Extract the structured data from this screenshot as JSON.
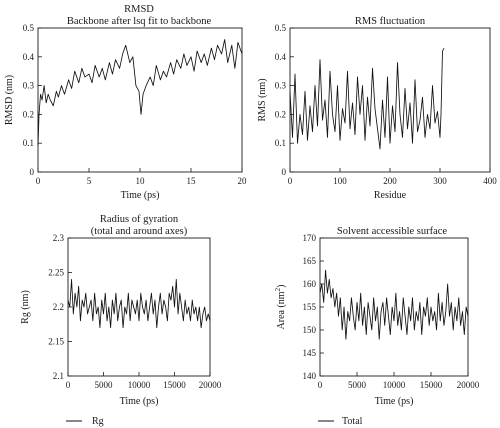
{
  "chart_data": [
    {
      "id": "rmsd",
      "type": "line",
      "title": "RMSD",
      "subtitle": "Backbone after lsq fit to backbone",
      "xlabel": "Time (ps)",
      "ylabel": "RMSD (nm)",
      "xlim": [
        0,
        20
      ],
      "ylim": [
        0,
        0.5
      ],
      "xticks": [
        0,
        5,
        10,
        15,
        20
      ],
      "yticks": [
        0,
        0.1,
        0.2,
        0.3,
        0.4,
        0.5
      ],
      "series": [
        {
          "x": [
            0,
            0.1,
            0.25,
            0.4,
            0.6,
            0.8,
            1.0,
            1.2,
            1.5,
            1.8,
            2.0,
            2.3,
            2.6,
            3.0,
            3.3,
            3.6,
            4.0,
            4.3,
            4.6,
            5.0,
            5.3,
            5.6,
            6.0,
            6.3,
            6.6,
            7.0,
            7.3,
            7.6,
            8.0,
            8.3,
            8.6,
            8.8,
            9.0,
            9.3,
            9.6,
            9.9,
            10.1,
            10.3,
            10.6,
            11.0,
            11.3,
            11.6,
            12.0,
            12.3,
            12.6,
            13.0,
            13.3,
            13.6,
            14.0,
            14.3,
            14.6,
            15.0,
            15.3,
            15.6,
            16.0,
            16.3,
            16.6,
            17.0,
            17.3,
            17.6,
            18.0,
            18.3,
            18.6,
            19.0,
            19.3,
            19.6,
            20.0
          ],
          "y": [
            0.09,
            0.2,
            0.27,
            0.25,
            0.3,
            0.24,
            0.27,
            0.25,
            0.23,
            0.28,
            0.26,
            0.3,
            0.27,
            0.32,
            0.29,
            0.35,
            0.31,
            0.36,
            0.33,
            0.34,
            0.31,
            0.37,
            0.33,
            0.36,
            0.32,
            0.38,
            0.34,
            0.39,
            0.36,
            0.41,
            0.44,
            0.41,
            0.38,
            0.4,
            0.3,
            0.28,
            0.2,
            0.27,
            0.3,
            0.33,
            0.3,
            0.37,
            0.32,
            0.35,
            0.33,
            0.38,
            0.34,
            0.39,
            0.36,
            0.41,
            0.37,
            0.4,
            0.35,
            0.42,
            0.38,
            0.41,
            0.37,
            0.43,
            0.39,
            0.44,
            0.41,
            0.46,
            0.38,
            0.44,
            0.36,
            0.45,
            0.41
          ]
        }
      ]
    },
    {
      "id": "rmsf",
      "type": "line",
      "title": "RMS fluctuation",
      "xlabel": "Residue",
      "ylabel": "RMS (nm)",
      "xlim": [
        0,
        400
      ],
      "ylim": [
        0,
        0.5
      ],
      "xticks": [
        0,
        100,
        200,
        300,
        400
      ],
      "yticks": [
        0,
        0.1,
        0.2,
        0.3,
        0.4,
        0.5
      ],
      "series": [
        {
          "x": [
            0,
            5,
            10,
            15,
            20,
            25,
            30,
            35,
            40,
            45,
            50,
            55,
            60,
            65,
            70,
            75,
            80,
            85,
            90,
            95,
            100,
            105,
            110,
            115,
            120,
            125,
            130,
            135,
            140,
            145,
            150,
            155,
            160,
            165,
            170,
            175,
            180,
            185,
            190,
            195,
            200,
            205,
            210,
            215,
            220,
            225,
            230,
            235,
            240,
            245,
            250,
            255,
            260,
            265,
            270,
            275,
            280,
            285,
            290,
            295,
            300,
            302,
            305,
            308
          ],
          "y": [
            0.28,
            0.12,
            0.34,
            0.1,
            0.2,
            0.13,
            0.28,
            0.11,
            0.23,
            0.14,
            0.3,
            0.16,
            0.39,
            0.18,
            0.25,
            0.12,
            0.35,
            0.2,
            0.14,
            0.3,
            0.11,
            0.22,
            0.17,
            0.35,
            0.15,
            0.24,
            0.13,
            0.33,
            0.2,
            0.3,
            0.11,
            0.26,
            0.16,
            0.36,
            0.22,
            0.15,
            0.08,
            0.25,
            0.12,
            0.33,
            0.1,
            0.23,
            0.14,
            0.38,
            0.2,
            0.12,
            0.29,
            0.15,
            0.24,
            0.1,
            0.32,
            0.14,
            0.18,
            0.26,
            0.12,
            0.2,
            0.15,
            0.3,
            0.17,
            0.21,
            0.12,
            0.2,
            0.42,
            0.43
          ]
        }
      ]
    },
    {
      "id": "rg",
      "type": "line",
      "title": "Radius of gyration",
      "subtitle": "(total and around axes)",
      "xlabel": "Time (ps)",
      "ylabel": "Rg (nm)",
      "xlim": [
        0,
        20000
      ],
      "ylim": [
        2.1,
        2.3
      ],
      "xticks": [
        0,
        5000,
        10000,
        15000,
        20000
      ],
      "yticks": [
        2.1,
        2.15,
        2.2,
        2.25,
        2.3
      ],
      "legend": [
        {
          "name": "Rg"
        }
      ],
      "series": [
        {
          "name": "Rg",
          "x": [
            0,
            250,
            500,
            750,
            1000,
            1250,
            1500,
            1750,
            2000,
            2250,
            2500,
            2750,
            3000,
            3250,
            3500,
            3750,
            4000,
            4250,
            4500,
            4750,
            5000,
            5250,
            5500,
            5750,
            6000,
            6250,
            6500,
            6750,
            7000,
            7250,
            7500,
            7750,
            8000,
            8250,
            8500,
            8750,
            9000,
            9250,
            9500,
            9750,
            10000,
            10250,
            10500,
            10750,
            11000,
            11250,
            11500,
            11750,
            12000,
            12250,
            12500,
            12750,
            13000,
            13250,
            13500,
            13750,
            14000,
            14250,
            14500,
            14750,
            15000,
            15250,
            15500,
            15750,
            16000,
            16250,
            16500,
            16750,
            17000,
            17250,
            17500,
            17750,
            18000,
            18250,
            18500,
            18750,
            19000,
            19250,
            19500,
            19750,
            20000
          ],
          "y": [
            2.21,
            2.2,
            2.24,
            2.19,
            2.22,
            2.2,
            2.23,
            2.18,
            2.21,
            2.2,
            2.22,
            2.19,
            2.2,
            2.21,
            2.18,
            2.22,
            2.19,
            2.2,
            2.17,
            2.21,
            2.19,
            2.22,
            2.18,
            2.2,
            2.17,
            2.21,
            2.19,
            2.22,
            2.18,
            2.2,
            2.21,
            2.17,
            2.2,
            2.19,
            2.22,
            2.18,
            2.21,
            2.2,
            2.19,
            2.21,
            2.18,
            2.22,
            2.2,
            2.19,
            2.21,
            2.18,
            2.2,
            2.22,
            2.19,
            2.21,
            2.17,
            2.2,
            2.22,
            2.19,
            2.21,
            2.2,
            2.18,
            2.22,
            2.21,
            2.23,
            2.2,
            2.24,
            2.19,
            2.22,
            2.2,
            2.18,
            2.21,
            2.19,
            2.2,
            2.18,
            2.21,
            2.19,
            2.2,
            2.18,
            2.2,
            2.17,
            2.19,
            2.2,
            2.18,
            2.19,
            2.18
          ]
        }
      ]
    },
    {
      "id": "sas",
      "type": "line",
      "title": "Solvent accessible surface",
      "xlabel": "Time (ps)",
      "ylabel": "Area (nm²)",
      "xlim": [
        0,
        20000
      ],
      "ylim": [
        140,
        170
      ],
      "xticks": [
        0,
        5000,
        10000,
        15000,
        20000
      ],
      "yticks": [
        140,
        145,
        150,
        155,
        160,
        165,
        170
      ],
      "legend": [
        {
          "name": "Total"
        }
      ],
      "series": [
        {
          "name": "Total",
          "x": [
            0,
            250,
            500,
            750,
            1000,
            1250,
            1500,
            1750,
            2000,
            2250,
            2500,
            2750,
            3000,
            3250,
            3500,
            3750,
            4000,
            4250,
            4500,
            4750,
            5000,
            5250,
            5500,
            5750,
            6000,
            6250,
            6500,
            6750,
            7000,
            7250,
            7500,
            7750,
            8000,
            8250,
            8500,
            8750,
            9000,
            9250,
            9500,
            9750,
            10000,
            10250,
            10500,
            10750,
            11000,
            11250,
            11500,
            11750,
            12000,
            12250,
            12500,
            12750,
            13000,
            13250,
            13500,
            13750,
            14000,
            14250,
            14500,
            14750,
            15000,
            15250,
            15500,
            15750,
            16000,
            16250,
            16500,
            16750,
            17000,
            17250,
            17500,
            17750,
            18000,
            18250,
            18500,
            18750,
            19000,
            19250,
            19500,
            19750,
            20000
          ],
          "y": [
            158,
            160,
            156,
            163,
            158,
            161,
            157,
            159,
            155,
            158,
            153,
            157,
            150,
            155,
            148,
            154,
            152,
            157,
            153,
            150,
            156,
            152,
            158,
            151,
            155,
            149,
            156,
            153,
            150,
            157,
            152,
            155,
            148,
            154,
            156,
            151,
            157,
            153,
            149,
            155,
            152,
            158,
            151,
            154,
            150,
            157,
            153,
            149,
            155,
            152,
            157,
            150,
            154,
            152,
            156,
            149,
            155,
            153,
            157,
            151,
            155,
            152,
            154,
            150,
            158,
            152,
            156,
            151,
            154,
            160,
            153,
            156,
            150,
            155,
            152,
            157,
            151,
            154,
            149,
            155,
            153
          ]
        }
      ]
    }
  ]
}
